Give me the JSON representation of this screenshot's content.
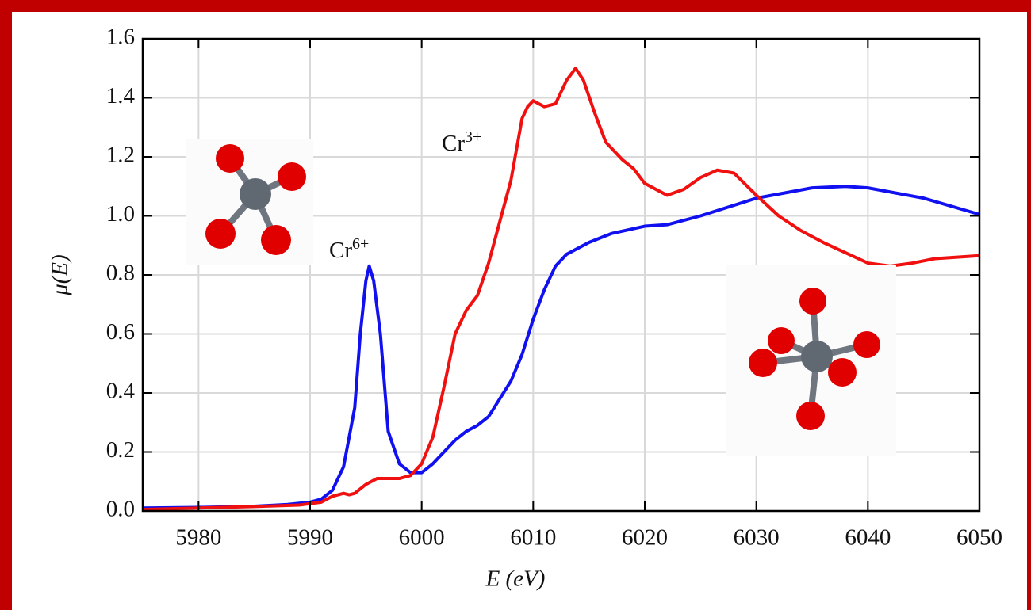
{
  "chart_data": {
    "type": "line",
    "x_label": "E (eV)",
    "y_label": "μ(E)",
    "xlim": [
      5975,
      6050
    ],
    "xticks": [
      5980,
      5990,
      6000,
      6010,
      6020,
      6030,
      6040,
      6050
    ],
    "ylim": [
      0,
      1.6
    ],
    "yticks": [
      {
        "value": 0,
        "label": "0.0"
      },
      {
        "value": 0.2,
        "label": "0.2"
      },
      {
        "value": 0.4,
        "label": "0.4"
      },
      {
        "value": 0.6,
        "label": "0.6"
      },
      {
        "value": 0.8,
        "label": "0.8"
      },
      {
        "value": 1,
        "label": "1.0"
      },
      {
        "value": 1.2,
        "label": "1.2"
      },
      {
        "value": 1.4,
        "label": "1.4"
      },
      {
        "value": 1.6,
        "label": "1.6"
      }
    ],
    "grid": true,
    "series": [
      {
        "color": "#1010f0",
        "x": [
          5975,
          5980,
          5985,
          5988,
          5990,
          5991,
          5992,
          5993,
          5994,
          5994.5,
          5995,
          5995.3,
          5995.7,
          5996.3,
          5997,
          5998,
          5999,
          6000,
          6001,
          6002,
          6003,
          6004,
          6005,
          6006,
          6007,
          6008,
          6009,
          6010,
          6011,
          6012,
          6013,
          6015,
          6017,
          6020,
          6022,
          6025,
          6030,
          6035,
          6038,
          6040,
          6045,
          6050
        ],
        "values": [
          0.01,
          0.012,
          0.016,
          0.022,
          0.03,
          0.04,
          0.07,
          0.15,
          0.35,
          0.6,
          0.78,
          0.83,
          0.78,
          0.6,
          0.27,
          0.16,
          0.13,
          0.13,
          0.16,
          0.2,
          0.24,
          0.27,
          0.29,
          0.32,
          0.38,
          0.44,
          0.53,
          0.65,
          0.75,
          0.83,
          0.87,
          0.91,
          0.94,
          0.965,
          0.97,
          1.0,
          1.06,
          1.095,
          1.1,
          1.095,
          1.06,
          1.005
        ]
      },
      {
        "color": "#f01010",
        "x": [
          5975,
          5980,
          5985,
          5989,
          5991,
          5992,
          5993,
          5993.5,
          5994,
          5995,
          5996,
          5997,
          5998,
          5999,
          6000,
          6001,
          6002,
          6003,
          6004,
          6005,
          6006,
          6007,
          6008,
          6009,
          6009.5,
          6010,
          6011,
          6012,
          6013,
          6013.8,
          6014.5,
          6015.5,
          6016.5,
          6018,
          6019,
          6020,
          6022,
          6023.5,
          6025,
          6026.5,
          6028,
          6030,
          6032,
          6034,
          6036,
          6040,
          6042,
          6044,
          6046,
          6050
        ],
        "values": [
          0.005,
          0.01,
          0.015,
          0.02,
          0.03,
          0.05,
          0.06,
          0.055,
          0.06,
          0.09,
          0.11,
          0.11,
          0.11,
          0.12,
          0.16,
          0.25,
          0.42,
          0.6,
          0.68,
          0.73,
          0.84,
          0.98,
          1.12,
          1.33,
          1.37,
          1.39,
          1.37,
          1.38,
          1.46,
          1.5,
          1.46,
          1.35,
          1.25,
          1.19,
          1.16,
          1.11,
          1.07,
          1.09,
          1.13,
          1.155,
          1.145,
          1.07,
          1.0,
          0.95,
          0.91,
          0.84,
          0.83,
          0.84,
          0.855,
          0.865
        ]
      }
    ],
    "annotations": [
      {
        "text": "Cr",
        "sup": "6+"
      },
      {
        "text": "Cr",
        "sup": "3+"
      }
    ]
  }
}
